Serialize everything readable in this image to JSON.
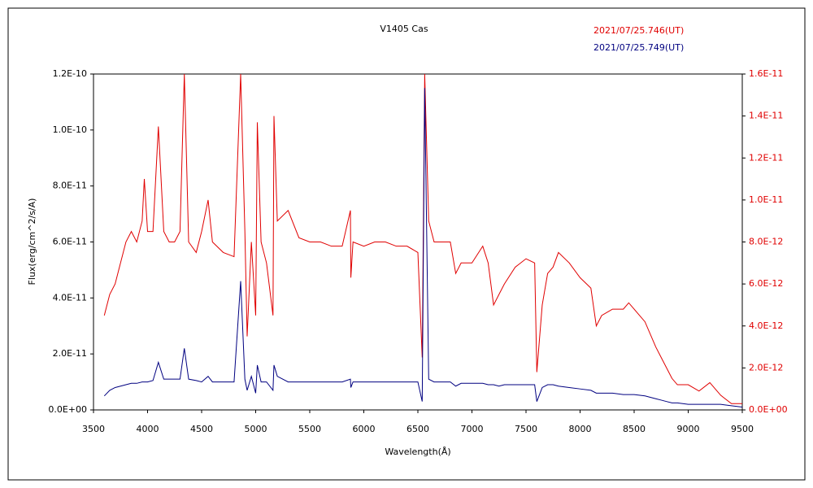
{
  "chart_data": {
    "type": "line",
    "title": "V1405 Cas",
    "xlabel": "Wavelength(Å)",
    "ylabel": "Flux(erg/cm^2/s/A)",
    "x": [
      3600,
      3650,
      3700,
      3750,
      3800,
      3850,
      3900,
      3950,
      3970,
      4000,
      4050,
      4100,
      4150,
      4200,
      4250,
      4300,
      4340,
      4380,
      4450,
      4500,
      4560,
      4600,
      4700,
      4800,
      4861,
      4900,
      4921,
      4960,
      5000,
      5015,
      5050,
      5100,
      5160,
      5169,
      5200,
      5300,
      5400,
      5500,
      5600,
      5700,
      5800,
      5876,
      5880,
      5900,
      6000,
      6100,
      6200,
      6300,
      6400,
      6500,
      6540,
      6563,
      6600,
      6650,
      6700,
      6800,
      6850,
      6900,
      7000,
      7100,
      7150,
      7200,
      7250,
      7300,
      7400,
      7500,
      7580,
      7600,
      7650,
      7700,
      7750,
      7800,
      7900,
      8000,
      8100,
      8150,
      8200,
      8300,
      8400,
      8450,
      8500,
      8600,
      8700,
      8750,
      8800,
      8850,
      8900,
      9000,
      9100,
      9200,
      9300,
      9400,
      9500
    ],
    "series": [
      {
        "name": "2021/07/25.746(UT)",
        "color": "#e00000",
        "axis": "y2",
        "values": [
          4.5e-12,
          5.5e-12,
          6e-12,
          7e-12,
          8e-12,
          8.5e-12,
          8e-12,
          9e-12,
          1.1e-11,
          8.5e-12,
          8.5e-12,
          1.35e-11,
          8.5e-12,
          8e-12,
          8e-12,
          8.5e-12,
          1.6e-11,
          8e-12,
          7.5e-12,
          8.5e-12,
          1e-11,
          8e-12,
          7.5e-12,
          7.3e-12,
          1.6e-11,
          8.5e-12,
          3.5e-12,
          8e-12,
          4.5e-12,
          1.37e-11,
          8e-12,
          7e-12,
          4.5e-12,
          1.4e-11,
          9e-12,
          9.5e-12,
          8.2e-12,
          8e-12,
          8e-12,
          7.8e-12,
          7.8e-12,
          9.5e-12,
          6.3e-12,
          8e-12,
          7.8e-12,
          8e-12,
          8e-12,
          7.8e-12,
          7.8e-12,
          7.5e-12,
          2.5e-12,
          1.6e-11,
          9e-12,
          8e-12,
          8e-12,
          8e-12,
          6.5e-12,
          7e-12,
          7e-12,
          7.8e-12,
          7e-12,
          5e-12,
          5.5e-12,
          6e-12,
          6.8e-12,
          7.2e-12,
          7e-12,
          1.8e-12,
          5e-12,
          6.5e-12,
          6.8e-12,
          7.5e-12,
          7e-12,
          6.3e-12,
          5.8e-12,
          4e-12,
          4.5e-12,
          4.8e-12,
          4.8e-12,
          5.1e-12,
          4.8e-12,
          4.2e-12,
          3e-12,
          2.5e-12,
          2e-12,
          1.5e-12,
          1.2e-12,
          1.2e-12,
          9e-13,
          1.3e-12,
          7e-13,
          3e-13,
          3e-13
        ]
      },
      {
        "name": "2021/07/25.749(UT)",
        "color": "#000080",
        "axis": "y",
        "values": [
          5e-12,
          7e-12,
          8e-12,
          8.5e-12,
          9e-12,
          9.5e-12,
          9.5e-12,
          1e-11,
          1e-11,
          1e-11,
          1.05e-11,
          1.7e-11,
          1.1e-11,
          1.1e-11,
          1.1e-11,
          1.1e-11,
          2.2e-11,
          1.1e-11,
          1.05e-11,
          1e-11,
          1.2e-11,
          1e-11,
          1e-11,
          1e-11,
          4.6e-11,
          1.1e-11,
          7e-12,
          1.2e-11,
          6e-12,
          1.6e-11,
          1e-11,
          1e-11,
          7e-12,
          1.6e-11,
          1.2e-11,
          1e-11,
          1e-11,
          1e-11,
          1e-11,
          1e-11,
          1e-11,
          1.1e-11,
          8e-12,
          1e-11,
          1e-11,
          1e-11,
          1e-11,
          1e-11,
          1e-11,
          1e-11,
          3e-12,
          1.15e-10,
          1.1e-11,
          1e-11,
          1e-11,
          1e-11,
          8.5e-12,
          9.5e-12,
          9.5e-12,
          9.5e-12,
          9e-12,
          9e-12,
          8.5e-12,
          9e-12,
          9e-12,
          9e-12,
          9e-12,
          3e-12,
          8e-12,
          9e-12,
          9e-12,
          8.5e-12,
          8e-12,
          7.5e-12,
          7e-12,
          6e-12,
          6e-12,
          6e-12,
          5.5e-12,
          5.5e-12,
          5.5e-12,
          5e-12,
          4e-12,
          3.5e-12,
          3e-12,
          2.5e-12,
          2.5e-12,
          2e-12,
          2e-12,
          2e-12,
          2e-12,
          1.5e-12,
          1e-12
        ]
      }
    ],
    "xlim": [
      3500,
      9500
    ],
    "xticks": [
      3500,
      4000,
      4500,
      5000,
      5500,
      6000,
      6500,
      7000,
      7500,
      8000,
      8500,
      9000,
      9500
    ],
    "ylim": [
      0,
      1.2e-10
    ],
    "yticks": [
      {
        "value": 0,
        "label": "0.0E+00"
      },
      {
        "value": 2e-11,
        "label": "2.0E-11"
      },
      {
        "value": 4e-11,
        "label": "4.0E-11"
      },
      {
        "value": 6e-11,
        "label": "6.0E-11"
      },
      {
        "value": 8e-11,
        "label": "8.0E-11"
      },
      {
        "value": 1e-10,
        "label": "1.0E-10"
      },
      {
        "value": 1.2e-10,
        "label": "1.2E-10"
      }
    ],
    "y2lim": [
      0,
      1.6e-11
    ],
    "y2ticks": [
      {
        "value": 0,
        "label": "0.0E+00"
      },
      {
        "value": 2e-12,
        "label": "2.0E-12"
      },
      {
        "value": 4e-12,
        "label": "4.0E-12"
      },
      {
        "value": 6e-12,
        "label": "6.0E-12"
      },
      {
        "value": 8e-12,
        "label": "8.0E-12"
      },
      {
        "value": 1e-11,
        "label": "1.0E-11"
      },
      {
        "value": 1.2e-11,
        "label": "1.2E-11"
      },
      {
        "value": 1.4e-11,
        "label": "1.4E-11"
      },
      {
        "value": 1.6e-11,
        "label": "1.6E-11"
      }
    ]
  }
}
